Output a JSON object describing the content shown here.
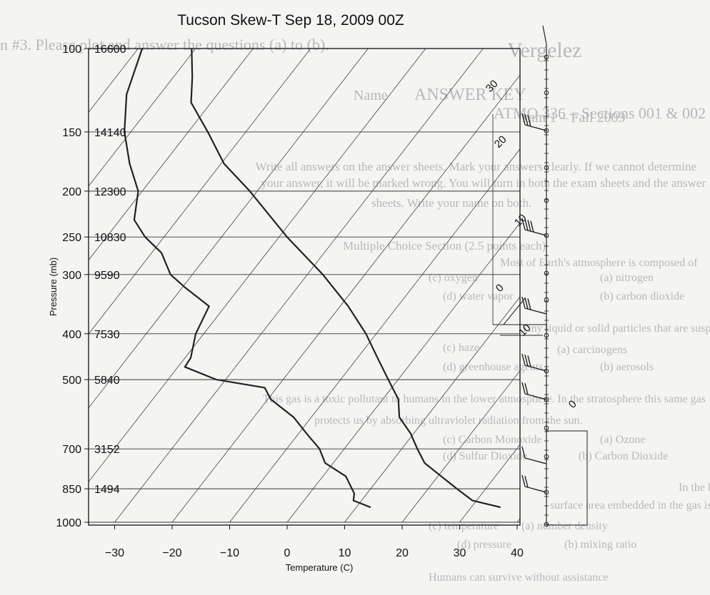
{
  "chart_data": {
    "type": "line",
    "title": "Tucson Skew-T Sep 18, 2009 00Z",
    "xlabel": "Temperature (C)",
    "ylabel": "Pressure (mb)",
    "x_ticks": [
      -30,
      -20,
      -10,
      0,
      10,
      20,
      30,
      40
    ],
    "y_scale": "log",
    "y_ticks": [
      {
        "p": 100,
        "height": "16600"
      },
      {
        "p": 150,
        "height": "14140"
      },
      {
        "p": 200,
        "height": "12300"
      },
      {
        "p": 250,
        "height": "10830"
      },
      {
        "p": 300,
        "height": "9590"
      },
      {
        "p": 400,
        "height": "7530"
      },
      {
        "p": 500,
        "height": "5840"
      },
      {
        "p": 700,
        "height": "3152"
      },
      {
        "p": 850,
        "height": "1494"
      },
      {
        "p": 1000,
        "height": ""
      }
    ],
    "series": [
      {
        "color": "#222222",
        "points": [
          {
            "p": 930,
            "t": 35.1
          },
          {
            "p": 900,
            "t": 29.3
          },
          {
            "p": 850,
            "t": 25.0
          },
          {
            "p": 800,
            "t": 20.6
          },
          {
            "p": 750,
            "t": 15.9
          },
          {
            "p": 700,
            "t": 12.7
          },
          {
            "p": 650,
            "t": 9.5
          },
          {
            "p": 600,
            "t": 5.3
          },
          {
            "p": 550,
            "t": 2.7
          },
          {
            "p": 500,
            "t": -1.7
          },
          {
            "p": 450,
            "t": -6.5
          },
          {
            "p": 400,
            "t": -11.8
          },
          {
            "p": 350,
            "t": -18.6
          },
          {
            "p": 300,
            "t": -27.3
          },
          {
            "p": 250,
            "t": -38.6
          },
          {
            "p": 200,
            "t": -51.3
          },
          {
            "p": 175,
            "t": -59.5
          },
          {
            "p": 150,
            "t": -66.6
          },
          {
            "p": 130,
            "t": -73.5
          },
          {
            "p": 115,
            "t": -76.7
          },
          {
            "p": 100,
            "t": -80.7
          }
        ]
      },
      {
        "color": "#222222",
        "points": [
          {
            "p": 930,
            "t": 12.5
          },
          {
            "p": 900,
            "t": 8.6
          },
          {
            "p": 870,
            "t": 7.8
          },
          {
            "p": 800,
            "t": 4.0
          },
          {
            "p": 750,
            "t": -1.4
          },
          {
            "p": 700,
            "t": -4.3
          },
          {
            "p": 650,
            "t": -8.6
          },
          {
            "p": 600,
            "t": -13.1
          },
          {
            "p": 550,
            "t": -19.5
          },
          {
            "p": 520,
            "t": -22.1
          },
          {
            "p": 500,
            "t": -31.6
          },
          {
            "p": 470,
            "t": -38.8
          },
          {
            "p": 450,
            "t": -39.0
          },
          {
            "p": 400,
            "t": -41.4
          },
          {
            "p": 350,
            "t": -42.8
          },
          {
            "p": 320,
            "t": -49.4
          },
          {
            "p": 300,
            "t": -53.8
          },
          {
            "p": 270,
            "t": -58.3
          },
          {
            "p": 250,
            "t": -63.3
          },
          {
            "p": 230,
            "t": -67.5
          },
          {
            "p": 200,
            "t": -70.7
          },
          {
            "p": 175,
            "t": -75.9
          },
          {
            "p": 150,
            "t": -81.1
          },
          {
            "p": 125,
            "t": -85.8
          },
          {
            "p": 100,
            "t": -89.3
          }
        ]
      }
    ],
    "isotherms": [
      -130,
      -120,
      -110,
      -100,
      -90,
      -80,
      -70,
      -60,
      -50,
      -40,
      -30,
      -20,
      -10,
      0,
      10,
      20,
      30,
      40
    ],
    "wind_profile": {
      "speed_labels": [
        "30",
        "20",
        "10",
        "0",
        "10",
        "0"
      ],
      "barb_levels": [
        150,
        250,
        400,
        500
      ]
    }
  },
  "page_background_text": {
    "header": "n #3. Please plot and answer the questions (a) to (b).",
    "handwritten_scrawl": "Vergelez",
    "course_line": "ATMO 336 – Sections 001 & 002",
    "name_label": "Name",
    "name_value": "ANSWER KEY",
    "exam_line": "xam 1 – Fall 2009",
    "instructions_line1": "Write all answers on the answer sheets. Mark your answers clearly. If we cannot determine",
    "instructions_line2": "your answer, it will be marked wrong. You will turn in both the exam sheets and the answer",
    "instructions_line3": "sheets. Write your name on both.",
    "section_heading": "Multiple Choice Section (2.5 points each)",
    "q1": "Most of Earth's atmosphere is composed of",
    "q1_a": "(a) nitrogen",
    "q1_c": "(c) oxygen",
    "q1_b": "(b) carbon dioxide",
    "q1_d": "(d) water vapor",
    "q2": "Tiny liquid or solid particles that are suspended in air are called",
    "q2_a": "(a) carcinogens",
    "q2_c": "(c) haze",
    "q2_b": "(b) aerosols",
    "q2_d": "(d) greenhouse agents",
    "q3_line1": "This gas is a toxic pollutant to humans in the lower atmosphere. In the stratosphere this same gas",
    "q3_line2": "protects us by absorbing ultraviolet radiation from the sun.",
    "q3_a": "(a) Ozone",
    "q3_c": "(c) Carbon Monoxide",
    "q3_b": "(b) Carbon Dioxide",
    "q3_d": "(d) Sulfur Dioxide",
    "q4_line1": "In the kinetic model for gases, the countless number of collisions between gas molecules on a",
    "q4_line2": "surface area embedded in the gas is the cause of",
    "q4_a": "(a) number density",
    "q4_c": "(c) temperature",
    "q4_b": "(b) mixing ratio",
    "q4_d": "(d) pressure",
    "q5": "Humans can survive without assistance"
  }
}
